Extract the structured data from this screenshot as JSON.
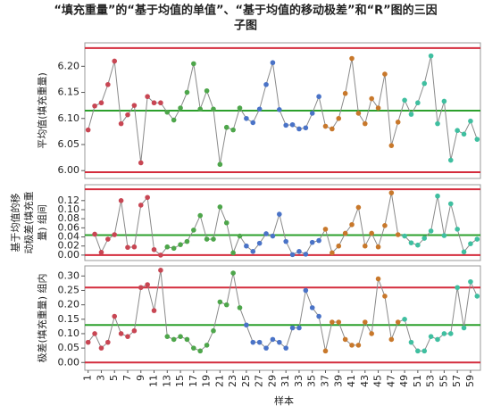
{
  "chart_data": {
    "type": "line",
    "title": [
      "“填充重量”的“基于均值的单值”、“基于均值的移动极差”和“R”图的三因",
      "子图"
    ],
    "xlabel": "样本",
    "x": [
      1,
      2,
      3,
      4,
      5,
      6,
      7,
      8,
      9,
      10,
      11,
      12,
      13,
      14,
      15,
      16,
      17,
      18,
      19,
      20,
      21,
      22,
      23,
      24,
      25,
      26,
      27,
      28,
      29,
      30,
      31,
      32,
      33,
      34,
      35,
      36,
      37,
      38,
      39,
      40,
      41,
      42,
      43,
      44,
      45,
      46,
      47,
      48,
      49,
      50,
      51,
      52,
      53,
      54,
      55,
      56,
      57,
      58,
      59,
      60
    ],
    "xlim": [
      0.5,
      60.5
    ],
    "xticks": [
      1,
      3,
      5,
      7,
      9,
      11,
      13,
      15,
      17,
      19,
      21,
      23,
      25,
      27,
      29,
      31,
      33,
      35,
      37,
      39,
      41,
      43,
      45,
      47,
      49,
      51,
      53,
      55,
      57,
      59
    ],
    "line_color": "#8a8a8a",
    "point_colors": [
      "#c84653",
      "#c84653",
      "#c84653",
      "#c84653",
      "#c84653",
      "#c84653",
      "#c84653",
      "#c84653",
      "#c84653",
      "#c84653",
      "#c84653",
      "#c84653",
      "#4ea64b",
      "#4ea64b",
      "#4ea64b",
      "#4ea64b",
      "#4ea64b",
      "#4ea64b",
      "#4ea64b",
      "#4ea64b",
      "#4ea64b",
      "#4ea64b",
      "#4ea64b",
      "#4ea64b",
      "#4a73c7",
      "#4a73c7",
      "#4a73c7",
      "#4a73c7",
      "#4a73c7",
      "#4a73c7",
      "#4a73c7",
      "#4a73c7",
      "#4a73c7",
      "#4a73c7",
      "#4a73c7",
      "#4a73c7",
      "#c8782b",
      "#c8782b",
      "#c8782b",
      "#c8782b",
      "#c8782b",
      "#c8782b",
      "#c8782b",
      "#c8782b",
      "#c8782b",
      "#c8782b",
      "#c8782b",
      "#c8782b",
      "#3fbfa0",
      "#3fbfa0",
      "#3fbfa0",
      "#3fbfa0",
      "#3fbfa0",
      "#3fbfa0",
      "#3fbfa0",
      "#3fbfa0",
      "#3fbfa0",
      "#3fbfa0",
      "#3fbfa0",
      "#3fbfa0"
    ],
    "panels": [
      {
        "ylabel": [
          "平均值(填充重量)"
        ],
        "ylim": [
          5.985,
          6.245
        ],
        "yticks": [
          {
            "value": 6.0,
            "label": "6.00"
          },
          6.05,
          {
            "value": 6.1,
            "label": "6.10"
          },
          6.15,
          {
            "value": 6.2,
            "label": "6.20"
          }
        ],
        "limits": {
          "ucl": 6.235,
          "center": 6.115,
          "lcl": 5.997
        },
        "values": [
          6.078,
          6.124,
          6.13,
          6.165,
          6.21,
          6.09,
          6.107,
          6.125,
          6.015,
          6.142,
          6.13,
          6.13,
          6.112,
          6.097,
          6.12,
          6.15,
          6.205,
          6.118,
          6.153,
          6.118,
          6.012,
          6.083,
          6.078,
          6.12,
          6.1,
          6.092,
          6.118,
          6.165,
          6.207,
          6.117,
          6.087,
          6.088,
          6.08,
          6.082,
          6.11,
          6.142,
          6.085,
          6.08,
          6.1,
          6.148,
          6.215,
          6.11,
          6.09,
          6.138,
          6.12,
          6.185,
          6.048,
          6.093,
          6.135,
          6.108,
          6.13,
          6.167,
          6.22,
          6.09,
          6.133,
          6.02,
          6.077,
          6.07,
          6.095,
          6.06
        ]
      },
      {
        "ylabel": [
          "基于均值的移",
          "动极差(填充重",
          "量) 组间"
        ],
        "ylim": [
          -0.012,
          0.155
        ],
        "yticks": [
          {
            "value": 0,
            "label": "0.00"
          },
          0.02,
          0.04,
          0.06,
          0.08,
          {
            "value": 0.1,
            "label": "0.10"
          },
          0.12
        ],
        "limits": {
          "ucl": 0.145,
          "center": 0.044,
          "lcl": 0
        },
        "values": [
          null,
          0.046,
          0.006,
          0.035,
          0.045,
          0.12,
          0.017,
          0.018,
          0.11,
          0.127,
          0.012,
          0,
          0.018,
          0.015,
          0.023,
          0.03,
          0.055,
          0.087,
          0.035,
          0.035,
          0.106,
          0.071,
          0.005,
          0.042,
          0.02,
          0.008,
          0.026,
          0.047,
          0.042,
          0.09,
          0.03,
          0.001,
          0.008,
          0.002,
          0.028,
          0.032,
          0.057,
          0.005,
          0.02,
          0.048,
          0.067,
          0.105,
          0.02,
          0.048,
          0.018,
          0.065,
          0.137,
          0.045,
          0.042,
          0.027,
          0.022,
          0.037,
          0.053,
          0.13,
          0.043,
          0.113,
          0.057,
          0.007,
          0.025,
          0.035
        ]
      },
      {
        "ylabel": [
          "极差(填充重量) 组内"
        ],
        "ylim": [
          -0.027,
          0.335
        ],
        "yticks": [
          {
            "value": 0,
            "label": "0.00"
          },
          0.05,
          {
            "value": 0.1,
            "label": "0.10"
          },
          0.15,
          {
            "value": 0.2,
            "label": "0.20"
          },
          0.25,
          {
            "value": 0.3,
            "label": "0.30"
          }
        ],
        "limits": {
          "ucl": 0.26,
          "center": 0.13,
          "lcl": 0
        },
        "values": [
          0.07,
          0.1,
          0.05,
          0.07,
          0.16,
          0.1,
          0.09,
          0.11,
          0.26,
          0.27,
          0.18,
          0.32,
          0.09,
          0.08,
          0.09,
          0.08,
          0.05,
          0.04,
          0.06,
          0.11,
          0.21,
          0.2,
          0.31,
          0.19,
          0.13,
          0.07,
          0.07,
          0.05,
          0.08,
          0.07,
          0.05,
          0.12,
          0.12,
          0.25,
          0.19,
          0.16,
          0.04,
          0.14,
          0.14,
          0.08,
          0.06,
          0.06,
          0.14,
          0.1,
          0.29,
          0.23,
          0.08,
          0.14,
          0.15,
          0.07,
          0.04,
          0.04,
          0.09,
          0.08,
          0.1,
          0.1,
          0.26,
          0.12,
          0.28,
          0.23
        ]
      }
    ],
    "limit_colors": {
      "ucl": "#d42d3d",
      "center": "#2ca02c",
      "lcl": "#d42d3d"
    }
  }
}
